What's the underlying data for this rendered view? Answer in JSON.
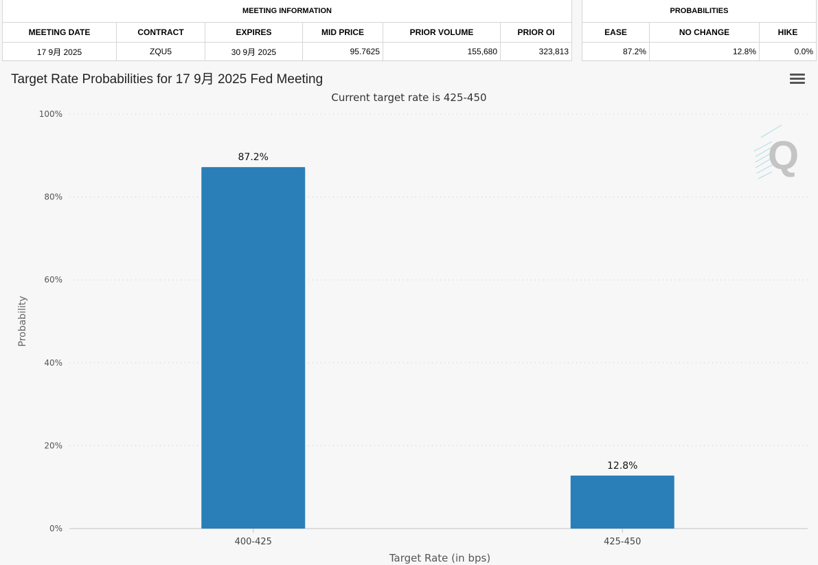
{
  "meeting_info": {
    "group_title": "MEETING INFORMATION",
    "columns": [
      "MEETING DATE",
      "CONTRACT",
      "EXPIRES",
      "MID PRICE",
      "PRIOR VOLUME",
      "PRIOR OI"
    ],
    "row": [
      "17 9月 2025",
      "ZQU5",
      "30 9月 2025",
      "95.7625",
      "155,680",
      "323,813"
    ]
  },
  "probabilities": {
    "group_title": "PROBABILITIES",
    "columns": [
      "EASE",
      "NO CHANGE",
      "HIKE"
    ],
    "row": [
      "87.2%",
      "12.8%",
      "0.0%"
    ]
  },
  "chart": {
    "menu_icon": "hamburger-menu-icon",
    "watermark_icon": "quikstrike-q-logo-icon"
  },
  "chart_data": {
    "type": "bar",
    "title": "Target Rate Probabilities for 17 9月 2025 Fed Meeting",
    "subtitle": "Current target rate is 425-450",
    "xlabel": "Target Rate (in bps)",
    "ylabel": "Probability",
    "categories": [
      "400-425",
      "425-450"
    ],
    "values": [
      87.2,
      12.8
    ],
    "data_labels": [
      "87.2%",
      "12.8%"
    ],
    "ylim": [
      0,
      100
    ],
    "yticks": [
      "0%",
      "20%",
      "40%",
      "60%",
      "80%",
      "100%"
    ],
    "grid": true,
    "bar_color": "#2a7fb8"
  }
}
